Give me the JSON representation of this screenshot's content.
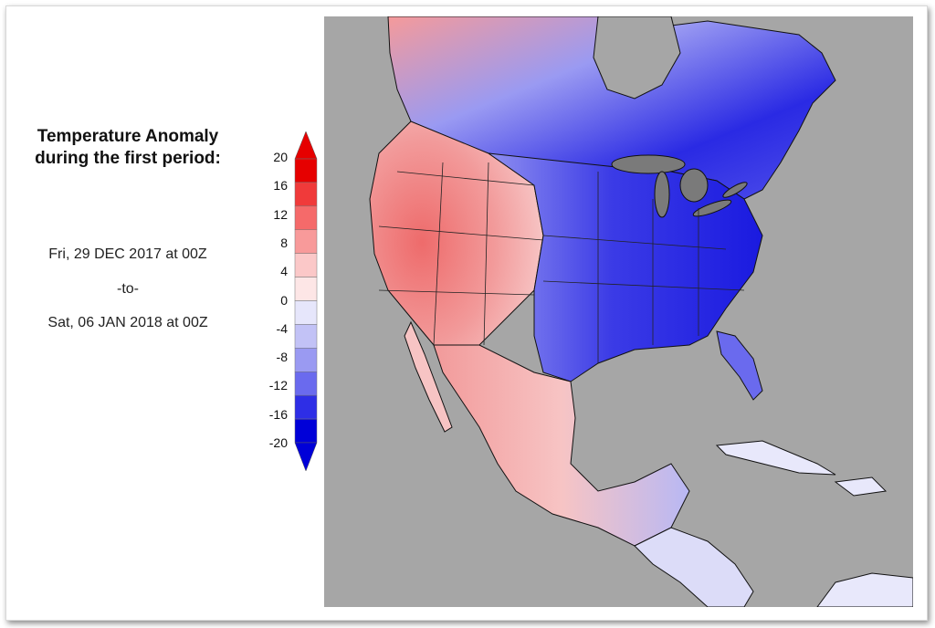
{
  "title_line1": "Temperature Anomaly",
  "title_line2": "during the first period:",
  "period_start": "Fri, 29 DEC 2017 at 00Z",
  "period_to": "-to-",
  "period_end": "Sat, 06 JAN 2018 at 00Z",
  "legend": {
    "labels": [
      "20",
      "16",
      "12",
      "8",
      "4",
      "0",
      "-4",
      "-8",
      "-12",
      "-16",
      "-20"
    ],
    "colors": [
      "#e60000",
      "#f03a3a",
      "#f56a6a",
      "#f89a9a",
      "#fbc8c8",
      "#fde6e6",
      "#e6e6fb",
      "#c2c2f6",
      "#9a9af2",
      "#6a6aee",
      "#2e2ee6",
      "#0000d8"
    ]
  },
  "colors": {
    "background": "#a6a6a6",
    "land_warm": "#f0848a",
    "land_cold": "#3535e6"
  }
}
